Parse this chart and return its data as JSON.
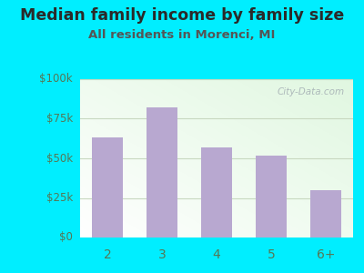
{
  "title": "Median family income by family size",
  "subtitle": "All residents in Morenci, MI",
  "categories": [
    "2",
    "3",
    "4",
    "5",
    "6+"
  ],
  "values": [
    63000,
    82000,
    57000,
    52000,
    30000
  ],
  "bar_color": "#b8a8d0",
  "ylim": [
    0,
    100000
  ],
  "yticks": [
    0,
    25000,
    50000,
    75000,
    100000
  ],
  "ytick_labels": [
    "$0",
    "$25k",
    "$50k",
    "$75k",
    "$100k"
  ],
  "bg_outer": "#00eeff",
  "title_color": "#2a2a2a",
  "subtitle_color": "#555555",
  "tick_color": "#557755",
  "grid_color": "#c8d8c0",
  "title_fontsize": 12.5,
  "subtitle_fontsize": 9.5,
  "watermark": "City-Data.com"
}
